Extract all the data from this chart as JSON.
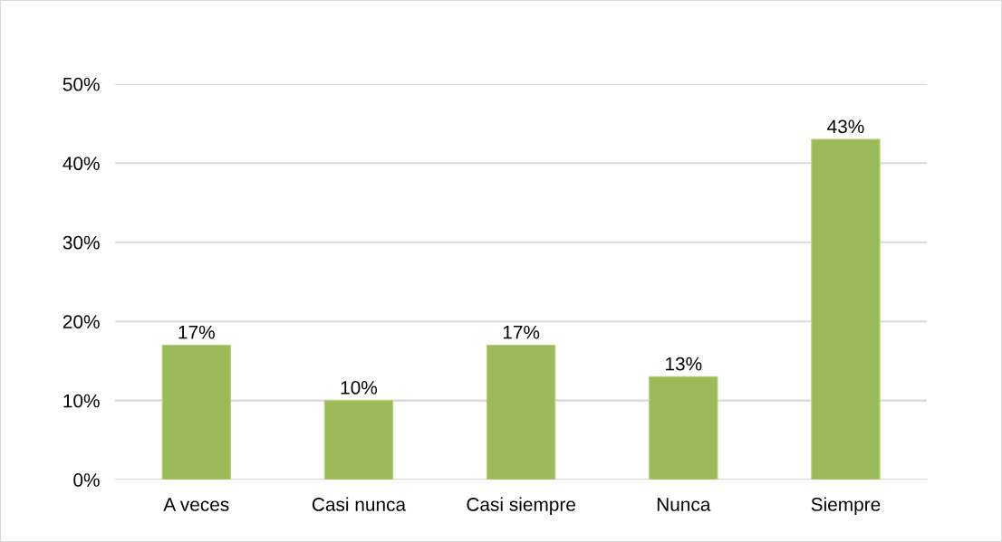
{
  "chart_data": {
    "type": "bar",
    "categories": [
      "A veces",
      "Casi nunca",
      "Casi siempre",
      "Nunca",
      "Siempre"
    ],
    "values": [
      17,
      10,
      17,
      13,
      43
    ],
    "value_labels": [
      "17%",
      "10%",
      "17%",
      "13%",
      "43%"
    ],
    "color": "#9bbb59",
    "ylim": [
      0,
      50
    ],
    "yticks": [
      {
        "value": 0,
        "label": "0%"
      },
      {
        "value": 10,
        "label": "10%"
      },
      {
        "value": 20,
        "label": "20%"
      },
      {
        "value": 30,
        "label": "30%"
      },
      {
        "value": 40,
        "label": "40%"
      },
      {
        "value": 50,
        "label": "50%"
      }
    ],
    "grid": "y"
  }
}
